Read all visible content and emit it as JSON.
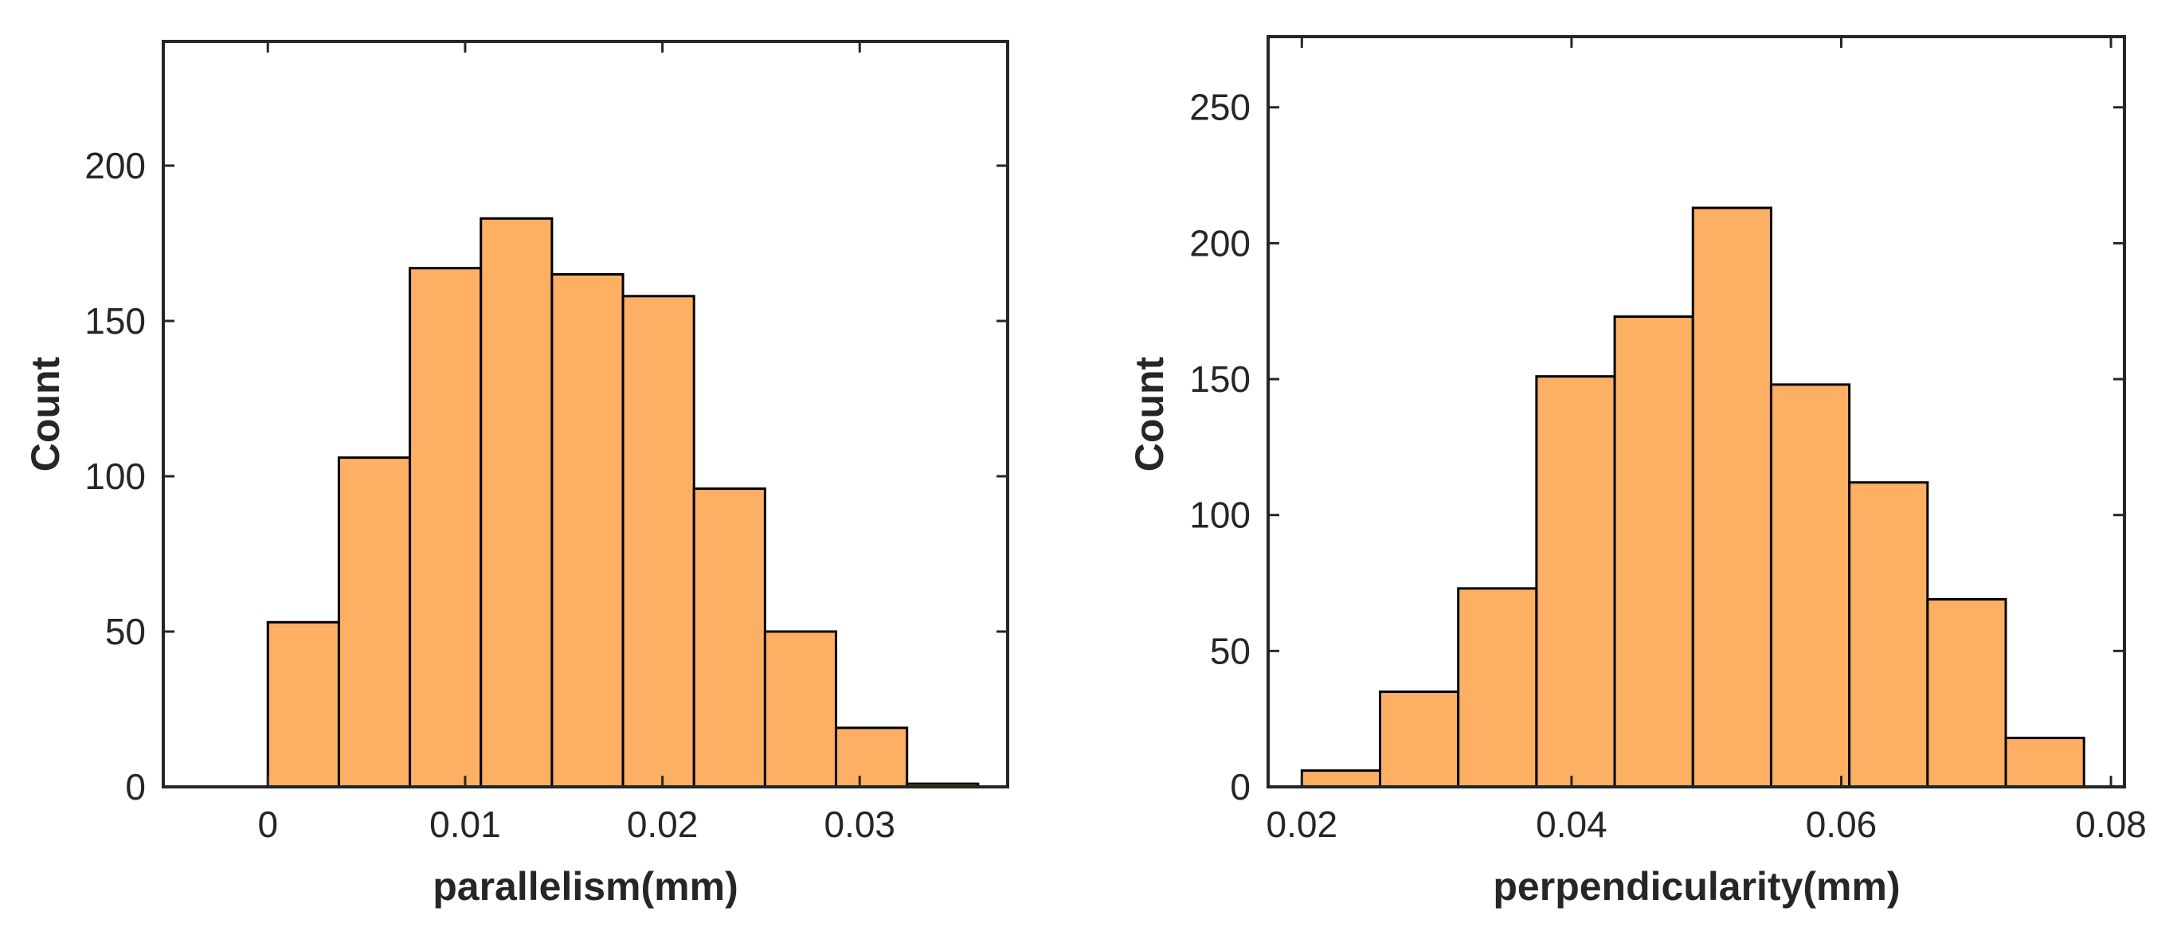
{
  "colors": {
    "bar_fill": "#FDAF64",
    "bar_edge": "#000000",
    "axis": "#262626"
  },
  "chart_data": [
    {
      "type": "bar",
      "subtype": "histogram",
      "title": "",
      "xlabel": "parallelism(mm)",
      "ylabel": "Count",
      "xlim": [
        -0.0053,
        0.0375
      ],
      "ylim": [
        0,
        240
      ],
      "bin_edges": [
        0,
        0.0036,
        0.0072,
        0.0108,
        0.0144,
        0.018,
        0.0216,
        0.0252,
        0.0288,
        0.0324,
        0.036
      ],
      "values": [
        53,
        106,
        167,
        183,
        165,
        158,
        96,
        50,
        19,
        1
      ],
      "xticks": [
        0,
        0.01,
        0.02,
        0.03
      ],
      "xtick_labels": [
        "0",
        "0.01",
        "0.02",
        "0.03"
      ],
      "yticks": [
        0,
        50,
        100,
        150,
        200
      ],
      "ytick_labels": [
        "0",
        "50",
        "100",
        "150",
        "200"
      ],
      "grid": false
    },
    {
      "type": "bar",
      "subtype": "histogram",
      "title": "",
      "xlabel": "perpendicularity(mm)",
      "ylabel": "Count",
      "xlim": [
        0.0175,
        0.081
      ],
      "ylim": [
        0,
        276
      ],
      "bin_edges": [
        0.02,
        0.0258,
        0.0316,
        0.0374,
        0.0432,
        0.049,
        0.0548,
        0.0606,
        0.0664,
        0.0722,
        0.078
      ],
      "values": [
        6,
        35,
        73,
        151,
        173,
        213,
        148,
        112,
        69,
        18
      ],
      "xticks": [
        0.02,
        0.04,
        0.06,
        0.08
      ],
      "xtick_labels": [
        "0.02",
        "0.04",
        "0.06",
        "0.08"
      ],
      "yticks": [
        0,
        50,
        100,
        150,
        200,
        250
      ],
      "ytick_labels": [
        "0",
        "50",
        "100",
        "150",
        "200",
        "250"
      ],
      "grid": false
    }
  ]
}
